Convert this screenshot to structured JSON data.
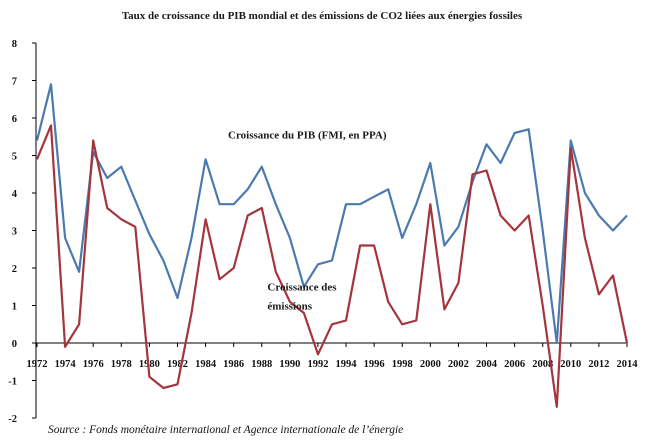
{
  "chart_data": {
    "type": "line",
    "title": "Taux de croissance du PIB mondial et des émissions de CO2 liées aux énergies fossiles",
    "source": "Source : Fonds monétaire international et Agence internationale de l’énergie",
    "xlabel": "",
    "ylabel": "",
    "ylim": [
      -2,
      8
    ],
    "yticks": [
      -2,
      -1,
      0,
      1,
      2,
      3,
      4,
      5,
      6,
      7,
      8
    ],
    "xlim": [
      1972,
      2014
    ],
    "xticks": [
      1972,
      1974,
      1976,
      1978,
      1980,
      1982,
      1984,
      1986,
      1988,
      1990,
      1992,
      1994,
      1996,
      1998,
      2000,
      2002,
      2004,
      2006,
      2008,
      2010,
      2012,
      2014
    ],
    "grid": false,
    "x": [
      1972,
      1973,
      1974,
      1975,
      1976,
      1977,
      1978,
      1979,
      1980,
      1981,
      1982,
      1983,
      1984,
      1985,
      1986,
      1987,
      1988,
      1989,
      1990,
      1991,
      1992,
      1993,
      1994,
      1995,
      1996,
      1997,
      1998,
      1999,
      2000,
      2001,
      2002,
      2003,
      2004,
      2005,
      2006,
      2007,
      2008,
      2009,
      2010,
      2011,
      2012,
      2013,
      2014
    ],
    "series": [
      {
        "name": "Croissance du PIB (FMI, en PPA)",
        "color": "#4a7ab0",
        "values": [
          5.4,
          6.9,
          2.8,
          1.9,
          5.1,
          4.4,
          4.7,
          3.8,
          2.9,
          2.2,
          1.2,
          2.8,
          4.9,
          3.7,
          3.7,
          4.1,
          4.7,
          3.7,
          2.8,
          1.5,
          2.1,
          2.2,
          3.7,
          3.7,
          3.9,
          4.1,
          2.8,
          3.7,
          4.8,
          2.6,
          3.1,
          4.3,
          5.3,
          4.8,
          5.6,
          5.7,
          3.0,
          0.0,
          5.4,
          4.0,
          3.4,
          3.0,
          3.4
        ]
      },
      {
        "name": "Croissance des émissions",
        "color": "#a5353c",
        "values": [
          4.9,
          5.8,
          -0.1,
          0.5,
          5.4,
          3.6,
          3.3,
          3.1,
          -0.9,
          -1.2,
          -1.1,
          0.8,
          3.3,
          1.7,
          2.0,
          3.4,
          3.6,
          1.9,
          1.1,
          0.8,
          -0.3,
          0.5,
          0.6,
          2.6,
          2.6,
          1.1,
          0.5,
          0.6,
          3.7,
          0.9,
          1.6,
          4.5,
          4.6,
          3.4,
          3.0,
          3.4,
          1.0,
          -1.7,
          5.2,
          2.8,
          1.3,
          1.8,
          0.0
        ]
      }
    ],
    "annotations": [
      {
        "text": "Croissance du PIB (FMI, en PPA)",
        "series": 0,
        "x": 1985.6,
        "y": 5.45
      },
      {
        "text": "Croissance des",
        "series": 1,
        "x": 1988.4,
        "y": 1.4
      },
      {
        "text": "émissions",
        "series": 1,
        "x": 1988.4,
        "y": 0.9
      }
    ]
  }
}
